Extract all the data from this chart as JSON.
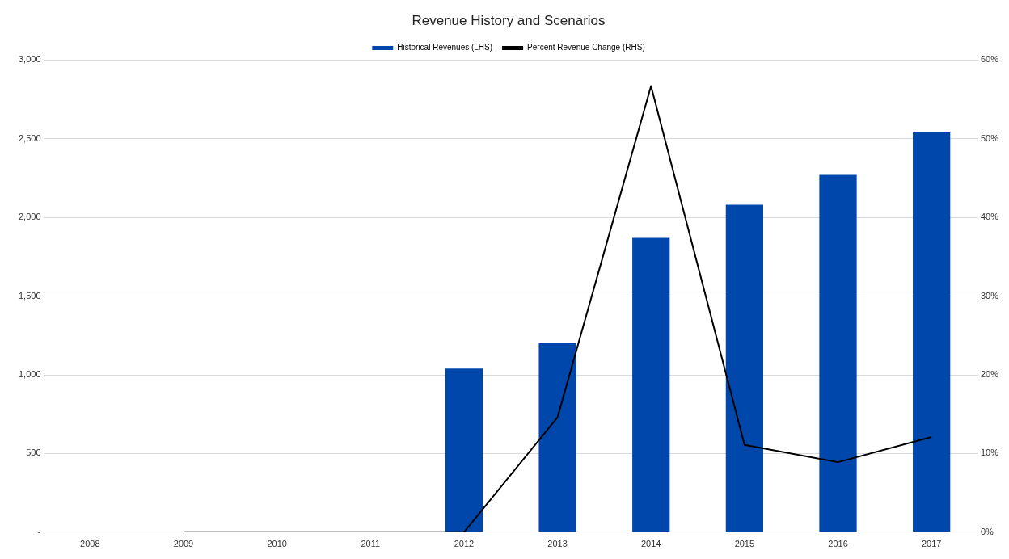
{
  "chart_data": {
    "type": "bar",
    "title": "Revenue History and Scenarios",
    "categories": [
      "2008",
      "2009",
      "2010",
      "2011",
      "2012",
      "2013",
      "2014",
      "2015",
      "2016",
      "2017"
    ],
    "series": [
      {
        "name": "Historical Revenues (LHS)",
        "color": "#0047ab",
        "values": [
          null,
          null,
          null,
          null,
          1040,
          1200,
          1870,
          2080,
          2270,
          2540
        ]
      },
      {
        "name": "Percent Revenue Change (RHS)",
        "type": "line",
        "axis": "y2",
        "color": "#000000",
        "values": [
          null,
          0,
          0,
          0,
          0,
          14.6,
          56.7,
          11.1,
          8.9,
          12.1
        ]
      }
    ],
    "ylim": [
      0,
      3000
    ],
    "yticks": [
      {
        "value": 0,
        "label": "-"
      },
      {
        "value": 500,
        "label": "500"
      },
      {
        "value": 1000,
        "label": "1,000"
      },
      {
        "value": 1500,
        "label": "1,500"
      },
      {
        "value": 2000,
        "label": "2,000"
      },
      {
        "value": 2500,
        "label": "2,500"
      },
      {
        "value": 3000,
        "label": "3,000"
      }
    ],
    "y2lim": [
      0,
      60
    ],
    "y2ticks": [
      {
        "value": 0,
        "label": "0%"
      },
      {
        "value": 10,
        "label": "10%"
      },
      {
        "value": 20,
        "label": "20%"
      },
      {
        "value": 30,
        "label": "30%"
      },
      {
        "value": 40,
        "label": "40%"
      },
      {
        "value": 50,
        "label": "50%"
      },
      {
        "value": 60,
        "label": "60%"
      }
    ],
    "grid": "y",
    "legend": "top",
    "marker": "none"
  }
}
